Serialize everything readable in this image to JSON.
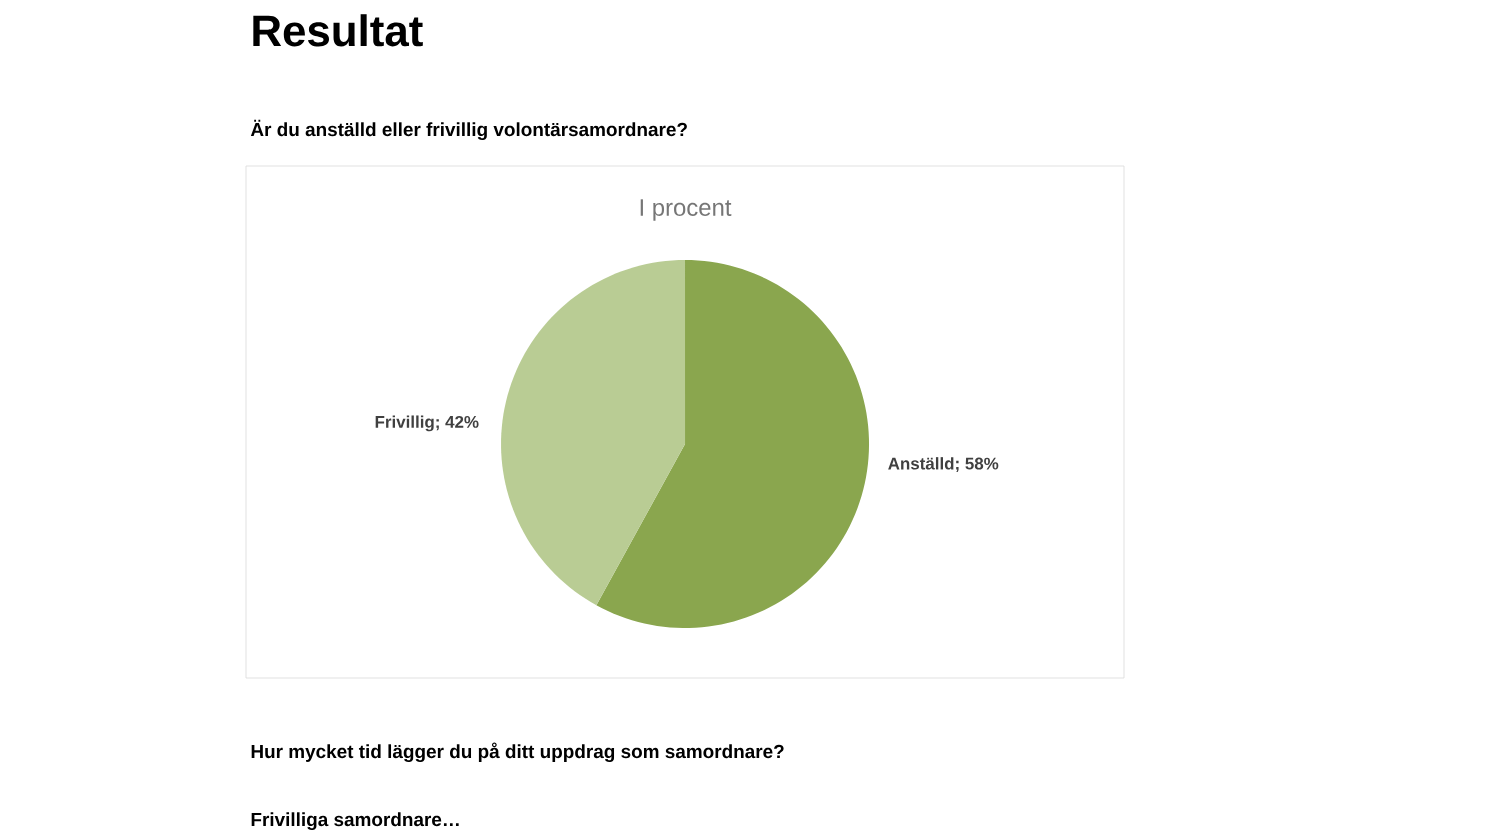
{
  "chart_data": {
    "type": "pie",
    "title": "I procent",
    "categories": [
      "Anställd",
      "Frivillig"
    ],
    "values": [
      58,
      42
    ],
    "colors": [
      "#8aa64e",
      "#b9cc94"
    ],
    "value_labels": [
      "; 58%",
      "; 42%"
    ],
    "legend": false,
    "annotations": [
      "Resultat",
      "Är du anställd eller frivillig volontärsamordnare?",
      "Hur mycket tid lägger du på ditt uppdrag som samordnare?",
      "Frivilliga samordnare…"
    ]
  }
}
